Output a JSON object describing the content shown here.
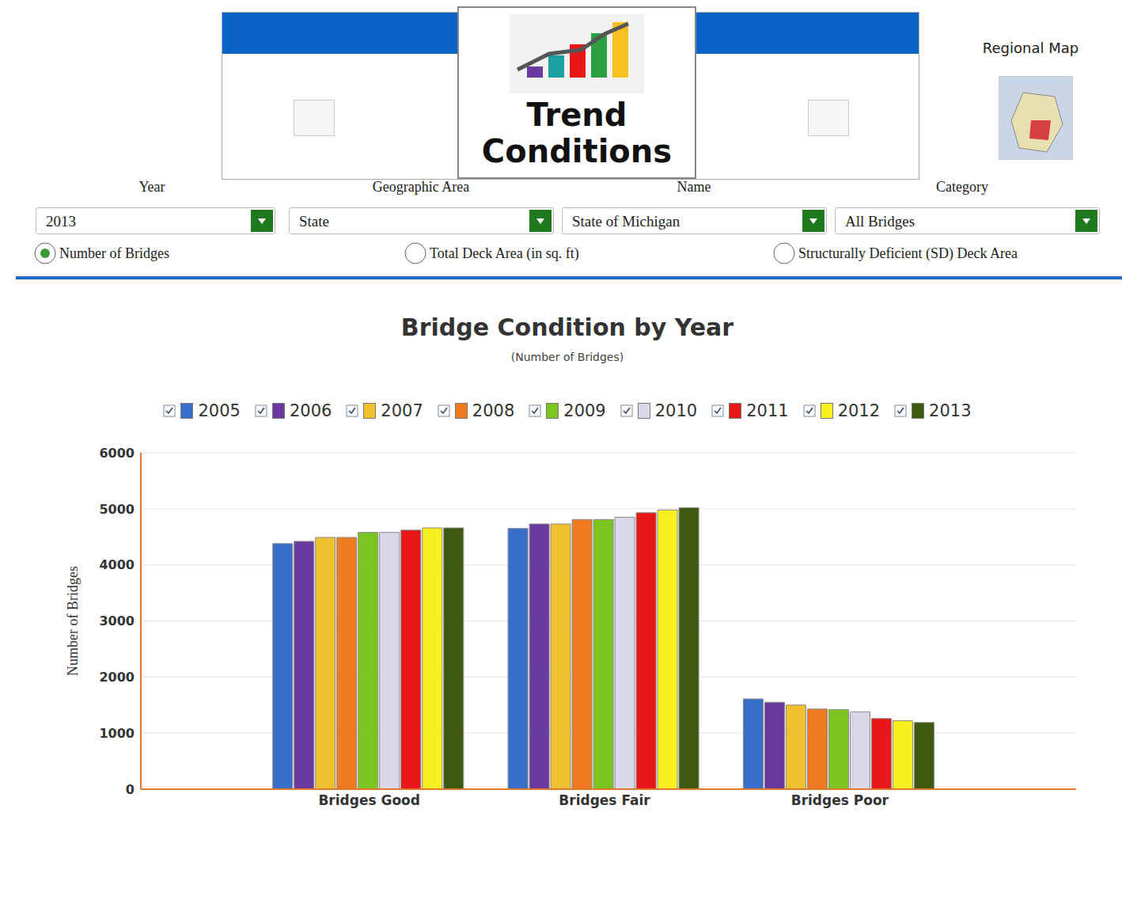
{
  "header": {
    "tile": "Trend Conditions",
    "map_label": "Regional Map"
  },
  "filters": [
    {
      "label": "Year",
      "value": "2013"
    },
    {
      "label": "Geographic Area",
      "value": "State"
    },
    {
      "label": "Name",
      "value": "State of Michigan"
    },
    {
      "label": "Category",
      "value": "All Bridges"
    }
  ],
  "measures": {
    "options": [
      "Number of Bridges",
      "Total Deck Area (in sq. ft)",
      "Structurally Deficient (SD) Deck Area"
    ],
    "selected": "Number of Bridges"
  },
  "chart_data": {
    "type": "bar",
    "title": "Bridge Condition by Year",
    "subtitle": "(Number of Bridges)",
    "y_label": "Number of Bridges",
    "categories": [
      "Bridges Good",
      "Bridges Fair",
      "Bridges Poor"
    ],
    "series": [
      {
        "name": "2005",
        "color": "#3a6fc9",
        "values": [
          4380,
          4650,
          1610
        ]
      },
      {
        "name": "2006",
        "color": "#6a3aa0",
        "values": [
          4420,
          4730,
          1550
        ]
      },
      {
        "name": "2007",
        "color": "#f0c030",
        "values": [
          4490,
          4730,
          1500
        ]
      },
      {
        "name": "2008",
        "color": "#f07a20",
        "values": [
          4490,
          4810,
          1430
        ]
      },
      {
        "name": "2009",
        "color": "#7cc520",
        "values": [
          4580,
          4810,
          1420
        ]
      },
      {
        "name": "2010",
        "color": "#d8d8e8",
        "values": [
          4580,
          4850,
          1380
        ]
      },
      {
        "name": "2011",
        "color": "#e81818",
        "values": [
          4620,
          4930,
          1260
        ]
      },
      {
        "name": "2012",
        "color": "#f8f020",
        "values": [
          4660,
          4980,
          1220
        ]
      },
      {
        "name": "2013",
        "color": "#3d5a10",
        "values": [
          4660,
          5020,
          1190
        ]
      }
    ],
    "ylim": [
      0,
      6000
    ],
    "yticks": [
      0,
      1000,
      2000,
      3000,
      4000,
      5000,
      6000
    ],
    "grid": true,
    "legend": "top"
  }
}
